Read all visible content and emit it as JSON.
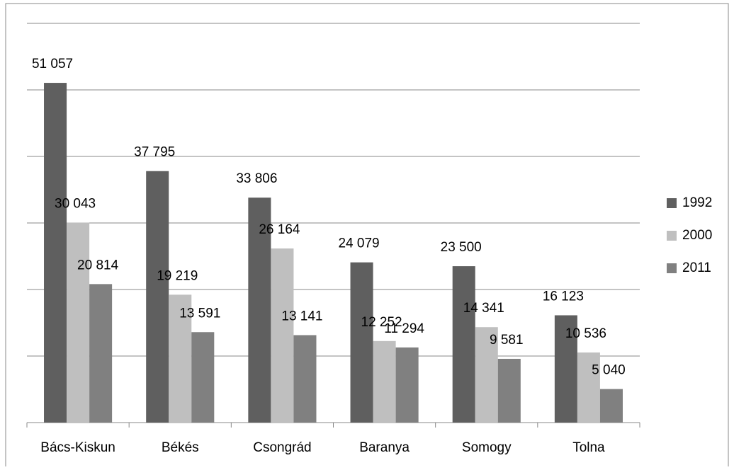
{
  "chart_data": {
    "type": "bar",
    "categories": [
      "Bács-Kiskun",
      "Békés",
      "Csongrád",
      "Baranya",
      "Somogy",
      "Tolna"
    ],
    "series": [
      {
        "name": "1992",
        "color": "#5f5f5f",
        "values": [
          51057,
          37795,
          33806,
          24079,
          23500,
          16123
        ],
        "value_labels": [
          "51 057",
          "37 795",
          "33 806",
          "24 079",
          "23 500",
          "16 123"
        ]
      },
      {
        "name": "2000",
        "color": "#bfbfbf",
        "values": [
          30043,
          19219,
          26164,
          12252,
          14341,
          10536
        ],
        "value_labels": [
          "30 043",
          "19 219",
          "26 164",
          "12 252",
          "14 341",
          "10 536"
        ]
      },
      {
        "name": "2011",
        "color": "#808080",
        "values": [
          20814,
          13591,
          13141,
          11294,
          9581,
          5040
        ],
        "value_labels": [
          "20 814",
          "13 591",
          "13 141",
          "11 294",
          "9 581",
          "5 040"
        ]
      }
    ],
    "ylim": [
      0,
      60000
    ],
    "yticks": [
      0,
      10000,
      20000,
      30000,
      40000,
      50000,
      60000
    ],
    "grid": true,
    "legend": "right"
  }
}
